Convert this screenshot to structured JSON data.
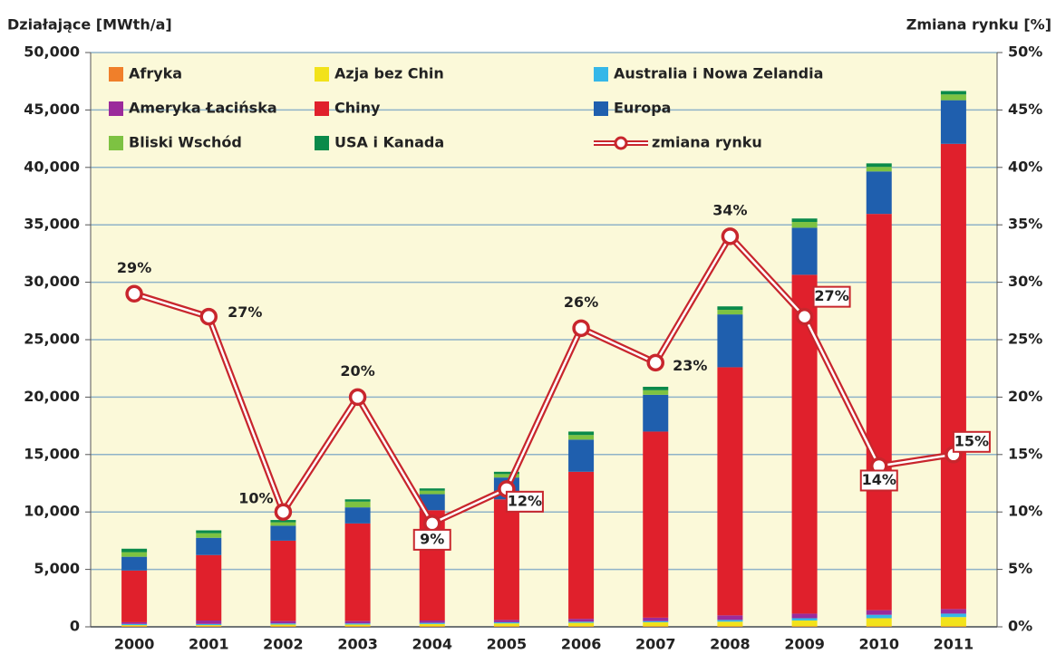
{
  "chart_data": {
    "type": "bar",
    "stacked": true,
    "y_label": "Działające [MWth/a]",
    "y2_label": "Zmiana rynku [%]",
    "categories": [
      "2000",
      "2001",
      "2002",
      "2003",
      "2004",
      "2005",
      "2006",
      "2007",
      "2008",
      "2009",
      "2010",
      "2011"
    ],
    "series": [
      {
        "name": "Afryka",
        "color": "#f07f2a",
        "values": [
          50,
          50,
          50,
          50,
          50,
          50,
          50,
          50,
          50,
          50,
          50,
          50
        ]
      },
      {
        "name": "Azja bez Chin",
        "color": "#f2e21a",
        "values": [
          100,
          100,
          150,
          150,
          200,
          250,
          300,
          350,
          400,
          500,
          700,
          800
        ]
      },
      {
        "name": "Australia i Nowa Zelandia",
        "color": "#35b7e8",
        "values": [
          100,
          100,
          100,
          100,
          100,
          100,
          100,
          100,
          150,
          200,
          300,
          300
        ]
      },
      {
        "name": "Ameryka Łacińska",
        "color": "#9b2b9b",
        "values": [
          150,
          300,
          200,
          200,
          200,
          200,
          250,
          300,
          400,
          400,
          400,
          400
        ]
      },
      {
        "name": "Chiny",
        "color": "#e0202c",
        "values": [
          4500,
          5700,
          7000,
          8500,
          9600,
          10500,
          12800,
          16200,
          21600,
          29500,
          34500,
          40500
        ]
      },
      {
        "name": "Europa",
        "color": "#1f5fae",
        "values": [
          1200,
          1500,
          1300,
          1400,
          1400,
          1900,
          2800,
          3200,
          4600,
          4100,
          3700,
          3800
        ]
      },
      {
        "name": "Bliski Wschód",
        "color": "#7dc242",
        "values": [
          400,
          400,
          300,
          500,
          300,
          300,
          400,
          400,
          400,
          500,
          400,
          500
        ]
      },
      {
        "name": "USA i Kanada",
        "color": "#0a8a4a",
        "values": [
          300,
          250,
          200,
          200,
          200,
          200,
          300,
          300,
          300,
          300,
          300,
          300
        ]
      },
      {
        "name": "zmiana rynku",
        "color": "#c8262d",
        "axis": "y2",
        "type": "line",
        "values": [
          29,
          27,
          10,
          20,
          9,
          12,
          26,
          23,
          34,
          27,
          14,
          15
        ],
        "value_labels": [
          "29%",
          "27%",
          "10%",
          "20%",
          "9%",
          "12%",
          "26%",
          "23%",
          "34%",
          "27%",
          "14%",
          "15%"
        ]
      }
    ],
    "ylim": [
      0,
      50000
    ],
    "yticks": [
      0,
      {
        "value": 5000,
        "label": "5,000"
      },
      {
        "value": 10000,
        "label": "10,000"
      },
      {
        "value": 15000,
        "label": "15,000"
      },
      {
        "value": 20000,
        "label": "20,000"
      },
      {
        "value": 25000,
        "label": "25,000"
      },
      {
        "value": 30000,
        "label": "30,000"
      },
      {
        "value": 35000,
        "label": "35,000"
      },
      {
        "value": 40000,
        "label": "40,000"
      },
      {
        "value": 45000,
        "label": "45,000"
      },
      {
        "value": 50000,
        "label": "50,000"
      }
    ],
    "y2lim": [
      0,
      50
    ],
    "y2ticks": [
      {
        "value": 0,
        "label": "0%"
      },
      {
        "value": 5,
        "label": "5%"
      },
      {
        "value": 10,
        "label": "10%"
      },
      {
        "value": 15,
        "label": "15%"
      },
      {
        "value": 20,
        "label": "20%"
      },
      {
        "value": 25,
        "label": "25%"
      },
      {
        "value": 30,
        "label": "30%"
      },
      {
        "value": 35,
        "label": "35%"
      },
      {
        "value": 40,
        "label": "40%"
      },
      {
        "value": 45,
        "label": "45%"
      },
      {
        "value": 50,
        "label": "50%"
      }
    ],
    "grid": true
  }
}
